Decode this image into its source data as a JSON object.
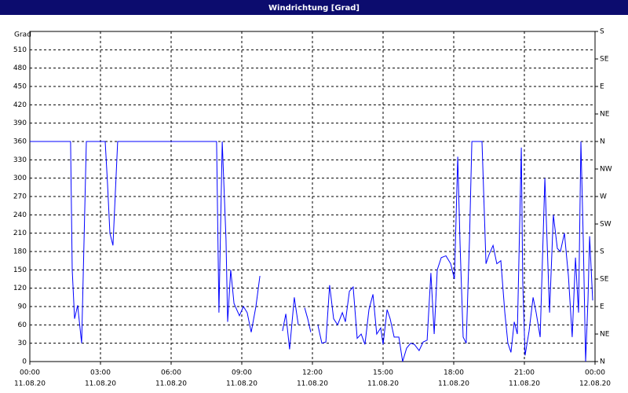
{
  "chart_data": {
    "type": "line",
    "title": "Windrichtung [Grad]",
    "y_label": "Grad",
    "xlim": [
      0,
      24
    ],
    "ylim": [
      0,
      540
    ],
    "y2lim": [
      0,
      540
    ],
    "grid": true,
    "xticks": [
      {
        "value": 0,
        "label": [
          "00:00",
          "11.08.20"
        ]
      },
      {
        "value": 3,
        "label": [
          "03:00",
          "11.08.20"
        ]
      },
      {
        "value": 6,
        "label": [
          "06:00",
          "11.08.20"
        ]
      },
      {
        "value": 9,
        "label": [
          "09:00",
          "11.08.20"
        ]
      },
      {
        "value": 12,
        "label": [
          "12:00",
          "11.08.20"
        ]
      },
      {
        "value": 15,
        "label": [
          "15:00",
          "11.08.20"
        ]
      },
      {
        "value": 18,
        "label": [
          "18:00",
          "11.08.20"
        ]
      },
      {
        "value": 21,
        "label": [
          "21:00",
          "11.08.20"
        ]
      },
      {
        "value": 24,
        "label": [
          "00:00",
          "12.08.20"
        ]
      }
    ],
    "yticks": [
      0,
      30,
      60,
      90,
      120,
      150,
      180,
      210,
      240,
      270,
      300,
      330,
      360,
      390,
      420,
      450,
      480,
      510
    ],
    "y2ticks": [
      {
        "value": 0,
        "label": "N"
      },
      {
        "value": 45,
        "label": "NE"
      },
      {
        "value": 90,
        "label": "E"
      },
      {
        "value": 135,
        "label": "SE"
      },
      {
        "value": 180,
        "label": "S"
      },
      {
        "value": 225,
        "label": "SW"
      },
      {
        "value": 270,
        "label": "W"
      },
      {
        "value": 315,
        "label": "NW"
      },
      {
        "value": 360,
        "label": "N"
      },
      {
        "value": 405,
        "label": "NE"
      },
      {
        "value": 450,
        "label": "E"
      },
      {
        "value": 495,
        "label": "SE"
      },
      {
        "value": 540,
        "label": "S"
      }
    ],
    "x": [
      0,
      1.73,
      1.8,
      1.9,
      2.03,
      2.2,
      2.4,
      3.2,
      3.3,
      3.4,
      3.53,
      3.73,
      7.93,
      8.03,
      8.17,
      8.33,
      8.4,
      8.53,
      8.67,
      8.9,
      9.07,
      9.23,
      9.4,
      9.6,
      9.77,
      10.2,
      10.73,
      10.87,
      11.03,
      11.23,
      11.4,
      11.6,
      11.67,
      11.8,
      11.93,
      12.1,
      12.23,
      12.4,
      12.57,
      12.73,
      12.9,
      13.07,
      13.27,
      13.4,
      13.57,
      13.73,
      13.9,
      14.07,
      14.23,
      14.4,
      14.57,
      14.73,
      14.9,
      15.0,
      15.17,
      15.3,
      15.47,
      15.67,
      15.83,
      16.0,
      16.17,
      16.33,
      16.53,
      16.7,
      16.87,
      17.03,
      17.17,
      17.3,
      17.47,
      17.67,
      17.87,
      18.03,
      18.17,
      18.27,
      18.4,
      18.53,
      18.67,
      18.77,
      19.2,
      19.37,
      19.5,
      19.67,
      19.83,
      20.0,
      20.17,
      20.3,
      20.43,
      20.57,
      20.7,
      20.87,
      20.93,
      21.03,
      21.2,
      21.37,
      21.5,
      21.67,
      21.87,
      22.07,
      22.23,
      22.4,
      22.53,
      22.7,
      22.87,
      23.03,
      23.17,
      23.3,
      23.4,
      23.5,
      23.6,
      23.7,
      23.77,
      23.9
    ],
    "series": [
      {
        "color": "#0000ff",
        "values": [
          360,
          360,
          150,
          70,
          92,
          30,
          360,
          360,
          290,
          210,
          190,
          360,
          360,
          80,
          360,
          200,
          65,
          150,
          95,
          75,
          90,
          80,
          48,
          90,
          140,
          null,
          50,
          78,
          20,
          105,
          60,
          null,
          88,
          70,
          48,
          null,
          60,
          30,
          32,
          125,
          70,
          60,
          80,
          65,
          115,
          122,
          38,
          45,
          28,
          85,
          110,
          45,
          55,
          28,
          85,
          70,
          40,
          40,
          0,
          22,
          30,
          28,
          18,
          32,
          35,
          145,
          45,
          150,
          170,
          173,
          160,
          135,
          335,
          190,
          40,
          30,
          200,
          360,
          360,
          160,
          175,
          190,
          160,
          165,
          80,
          30,
          15,
          65,
          45,
          350,
          130,
          10,
          50,
          105,
          80,
          40,
          300,
          80,
          240,
          185,
          180,
          210,
          140,
          40,
          170,
          80,
          360,
          200,
          0,
          100,
          205,
          100
        ]
      }
    ]
  }
}
